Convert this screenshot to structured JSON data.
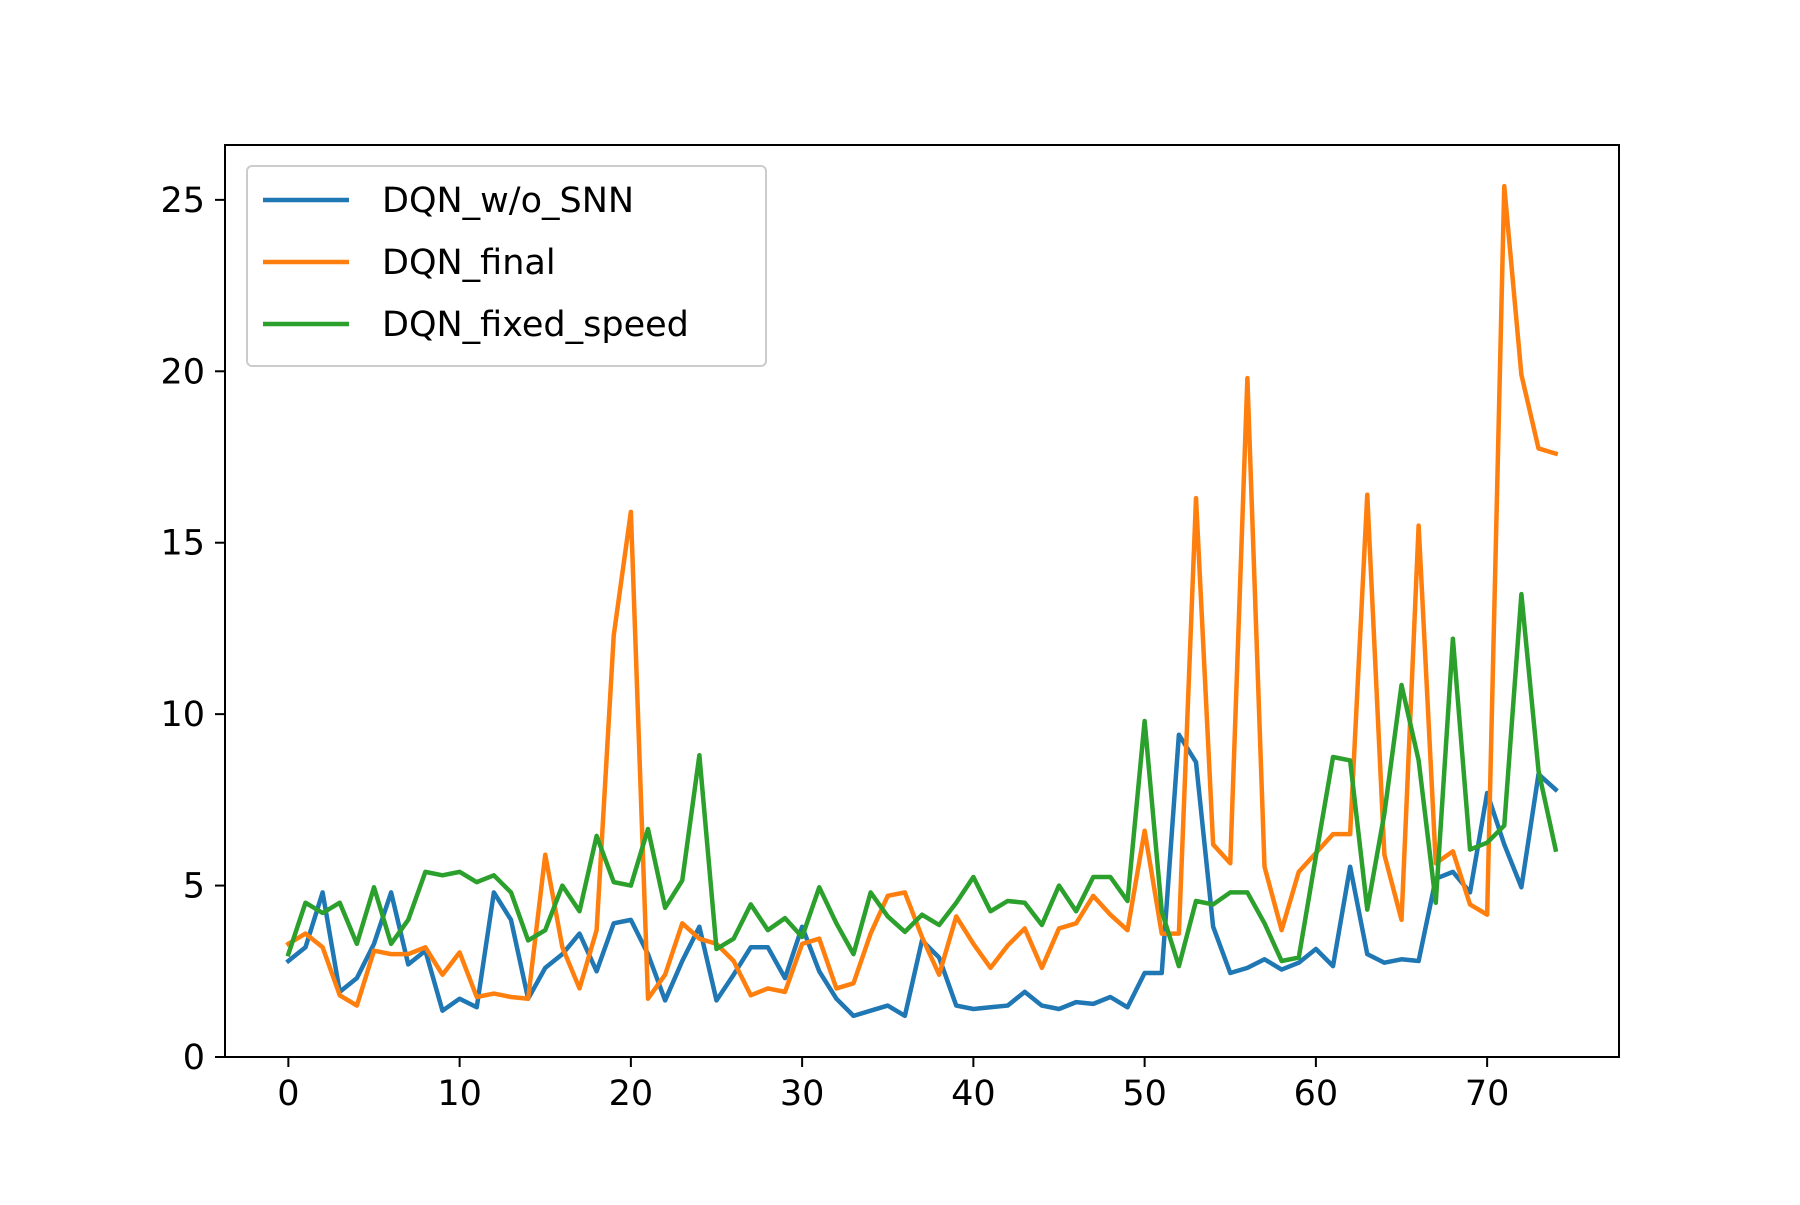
{
  "chart_data": {
    "type": "line",
    "title": "",
    "xlabel": "",
    "ylabel": "",
    "xlim": [
      -3.7,
      77.7
    ],
    "ylim": [
      0,
      26.6
    ],
    "xticks": [
      "0",
      "10",
      "20",
      "30",
      "40",
      "50",
      "60",
      "70"
    ],
    "yticks": [
      "0",
      "5",
      "10",
      "15",
      "20",
      "25"
    ],
    "grid": false,
    "legend_position": "upper left",
    "x": [
      0,
      1,
      2,
      3,
      4,
      5,
      6,
      7,
      8,
      9,
      10,
      11,
      12,
      13,
      14,
      15,
      16,
      17,
      18,
      19,
      20,
      21,
      22,
      23,
      24,
      25,
      26,
      27,
      28,
      29,
      30,
      31,
      32,
      33,
      34,
      35,
      36,
      37,
      38,
      39,
      40,
      41,
      42,
      43,
      44,
      45,
      46,
      47,
      48,
      49,
      50,
      51,
      52,
      53,
      54,
      55,
      56,
      57,
      58,
      59,
      60,
      61,
      62,
      63,
      64,
      65,
      66,
      67,
      68,
      69,
      70,
      71,
      72,
      73,
      74
    ],
    "series": [
      {
        "name": "DQN_w/o_SNN",
        "color": "#1f77b4",
        "values": [
          2.8,
          3.2,
          4.8,
          1.9,
          2.3,
          3.3,
          4.8,
          2.7,
          3.1,
          1.35,
          1.7,
          1.45,
          4.8,
          4.0,
          1.7,
          2.6,
          3.0,
          3.6,
          2.5,
          3.9,
          4.0,
          3.0,
          1.65,
          2.8,
          3.8,
          1.65,
          2.4,
          3.2,
          3.2,
          2.3,
          3.8,
          2.5,
          1.7,
          1.2,
          1.35,
          1.5,
          1.2,
          3.4,
          2.9,
          1.5,
          1.4,
          1.45,
          1.5,
          1.9,
          1.5,
          1.4,
          1.6,
          1.55,
          1.75,
          1.45,
          2.45,
          2.45,
          9.4,
          8.6,
          3.8,
          2.45,
          2.6,
          2.85,
          2.55,
          2.75,
          3.15,
          2.65,
          5.55,
          3.0,
          2.75,
          2.85,
          2.8,
          5.2,
          5.4,
          4.8,
          7.7,
          6.2,
          4.95,
          8.25,
          7.8
        ]
      },
      {
        "name": "DQN_final",
        "color": "#ff7f0e",
        "values": [
          3.3,
          3.6,
          3.2,
          1.8,
          1.5,
          3.1,
          3.0,
          3.0,
          3.2,
          2.4,
          3.05,
          1.75,
          1.85,
          1.75,
          1.7,
          5.9,
          3.2,
          2.0,
          3.7,
          12.3,
          15.9,
          1.7,
          2.4,
          3.9,
          3.45,
          3.3,
          2.8,
          1.8,
          2.0,
          1.9,
          3.3,
          3.45,
          2.0,
          2.15,
          3.6,
          4.7,
          4.8,
          3.5,
          2.4,
          4.1,
          3.3,
          2.6,
          3.25,
          3.75,
          2.6,
          3.75,
          3.9,
          4.7,
          4.15,
          3.7,
          6.6,
          3.6,
          3.6,
          16.3,
          6.2,
          5.65,
          19.8,
          5.55,
          3.7,
          5.4,
          5.95,
          6.5,
          6.5,
          16.4,
          5.9,
          4.0,
          15.5,
          5.65,
          6.0,
          4.45,
          4.15,
          25.4,
          19.9,
          17.75,
          17.6
        ]
      },
      {
        "name": "DQN_fixed_speed",
        "color": "#2ca02c",
        "values": [
          3.0,
          4.5,
          4.2,
          4.5,
          3.3,
          4.95,
          3.3,
          4.0,
          5.4,
          5.3,
          5.4,
          5.1,
          5.3,
          4.8,
          3.4,
          3.7,
          5.0,
          4.25,
          6.45,
          5.1,
          5.0,
          6.65,
          4.35,
          5.15,
          8.8,
          3.15,
          3.45,
          4.45,
          3.7,
          4.05,
          3.5,
          4.95,
          3.9,
          3.0,
          4.8,
          4.1,
          3.65,
          4.15,
          3.85,
          4.5,
          5.25,
          4.25,
          4.55,
          4.5,
          3.85,
          5.0,
          4.25,
          5.25,
          5.25,
          4.55,
          9.8,
          4.25,
          2.65,
          4.55,
          4.45,
          4.8,
          4.8,
          3.9,
          2.8,
          2.9,
          5.85,
          8.75,
          8.65,
          4.3,
          7.1,
          10.85,
          8.65,
          4.5,
          12.2,
          6.05,
          6.25,
          6.75,
          13.5,
          8.35,
          6.05
        ]
      }
    ]
  }
}
